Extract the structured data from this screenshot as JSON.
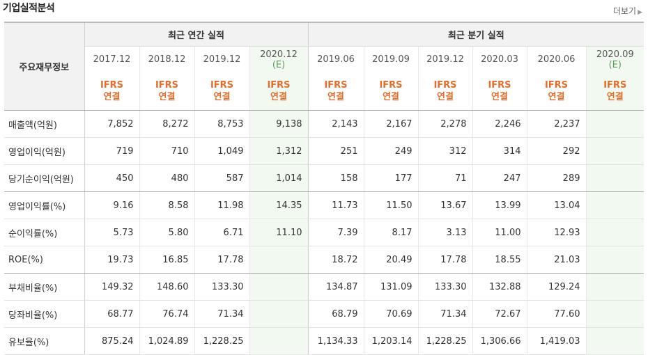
{
  "title": "기업실적분석",
  "more_label": "더보기",
  "more_icon": "triangle-right-icon",
  "table": {
    "row_header_label": "주요재무정보",
    "annual_label": "최근 연간 실적",
    "quarter_label": "최근 분기 실적",
    "ifrs_line1": "IFRS",
    "ifrs_line2": "연결",
    "estimate_mark": "(E)",
    "annual_periods": [
      "2017.12",
      "2018.12",
      "2019.12",
      "2020.12"
    ],
    "quarter_periods": [
      "2019.06",
      "2019.09",
      "2019.12",
      "2020.03",
      "2020.06",
      "2020.09"
    ],
    "rows": [
      {
        "label": "매출액(억원)",
        "annual": [
          "7,852",
          "8,272",
          "8,753",
          "9,138"
        ],
        "quarter": [
          "2,143",
          "2,167",
          "2,278",
          "2,246",
          "2,237",
          ""
        ]
      },
      {
        "label": "영업이익(억원)",
        "annual": [
          "719",
          "710",
          "1,049",
          "1,312"
        ],
        "quarter": [
          "251",
          "249",
          "312",
          "314",
          "292",
          ""
        ]
      },
      {
        "label": "당기순이익(억원)",
        "annual": [
          "450",
          "480",
          "587",
          "1,014"
        ],
        "quarter": [
          "158",
          "177",
          "71",
          "247",
          "289",
          ""
        ]
      },
      {
        "label": "영업이익률(%)",
        "annual": [
          "9.16",
          "8.58",
          "11.98",
          "14.35"
        ],
        "quarter": [
          "11.73",
          "11.50",
          "13.67",
          "13.99",
          "13.04",
          ""
        ]
      },
      {
        "label": "순이익률(%)",
        "annual": [
          "5.73",
          "5.80",
          "6.71",
          "11.10"
        ],
        "quarter": [
          "7.39",
          "8.17",
          "3.13",
          "11.00",
          "12.93",
          ""
        ]
      },
      {
        "label": "ROE(%)",
        "annual": [
          "19.73",
          "16.85",
          "17.78",
          ""
        ],
        "quarter": [
          "18.72",
          "20.49",
          "17.78",
          "18.55",
          "21.03",
          ""
        ]
      },
      {
        "label": "부채비율(%)",
        "annual": [
          "149.32",
          "148.60",
          "133.30",
          ""
        ],
        "quarter": [
          "134.87",
          "131.09",
          "133.30",
          "132.88",
          "129.24",
          ""
        ]
      },
      {
        "label": "당좌비율(%)",
        "annual": [
          "68.77",
          "76.74",
          "71.34",
          ""
        ],
        "quarter": [
          "68.79",
          "70.69",
          "71.34",
          "72.67",
          "77.60",
          ""
        ]
      },
      {
        "label": "유보율(%)",
        "annual": [
          "875.24",
          "1,024.89",
          "1,228.25",
          ""
        ],
        "quarter": [
          "1,134.33",
          "1,203.14",
          "1,228.25",
          "1,306.66",
          "1,419.03",
          ""
        ]
      }
    ]
  },
  "colors": {
    "ifrs_text": "#e46d2b",
    "estimate_column_bg": "#f2f9f1",
    "header_bg": "#f2f2f2"
  }
}
